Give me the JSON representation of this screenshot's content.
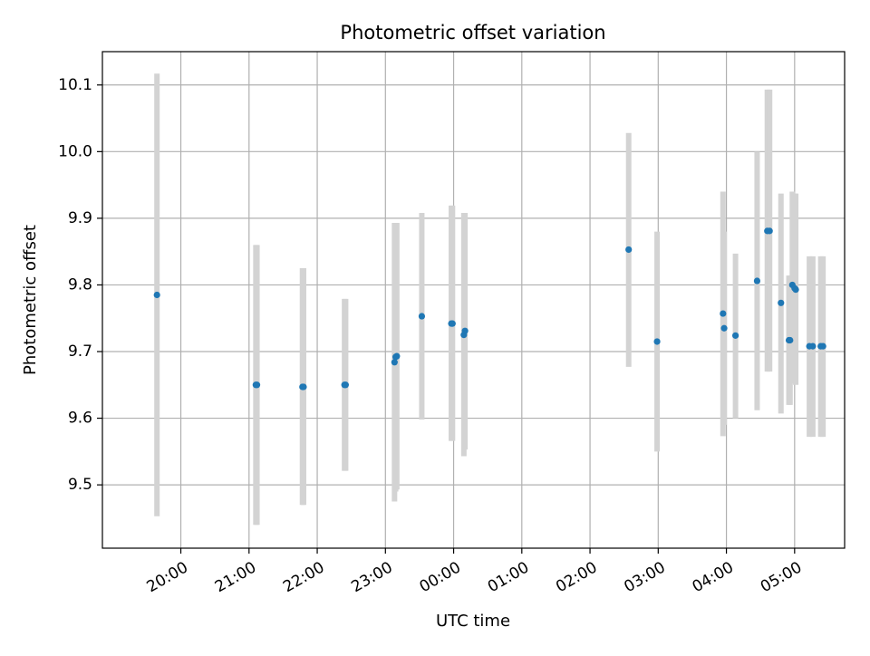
{
  "chart_data": {
    "type": "scatter",
    "title": "Photometric offset variation",
    "xlabel": "UTC time",
    "ylabel": "Photometric offset",
    "grid": true,
    "xlim_minutes_from_19_00": [
      -9,
      644
    ],
    "ylim": [
      9.405,
      10.15
    ],
    "x_ticks": [
      "20:00",
      "21:00",
      "22:00",
      "23:00",
      "00:00",
      "01:00",
      "02:00",
      "03:00",
      "04:00",
      "05:00"
    ],
    "y_ticks": [
      "9.5",
      "9.6",
      "9.7",
      "9.8",
      "9.9",
      "10.0",
      "10.1"
    ],
    "y_tick_values": [
      9.5,
      9.6,
      9.7,
      9.8,
      9.9,
      10.0,
      10.1
    ],
    "colors": {
      "marker": "#1f77b4",
      "errorbar": "#d3d3d3",
      "grid": "#b0b0b0"
    },
    "points": [
      {
        "t": "19:39",
        "y": 9.785,
        "ylo": 9.453,
        "yhi": 10.117
      },
      {
        "t": "21:06",
        "y": 9.65,
        "ylo": 9.44,
        "yhi": 9.86
      },
      {
        "t": "21:07",
        "y": 9.65,
        "ylo": 9.44,
        "yhi": 9.86
      },
      {
        "t": "21:47",
        "y": 9.647,
        "ylo": 9.47,
        "yhi": 9.825
      },
      {
        "t": "21:48",
        "y": 9.647,
        "ylo": 9.47,
        "yhi": 9.825
      },
      {
        "t": "22:24",
        "y": 9.65,
        "ylo": 9.521,
        "yhi": 9.779
      },
      {
        "t": "22:25",
        "y": 9.65,
        "ylo": 9.521,
        "yhi": 9.779
      },
      {
        "t": "23:08",
        "y": 9.684,
        "ylo": 9.475,
        "yhi": 9.893
      },
      {
        "t": "23:09",
        "y": 9.692,
        "ylo": 9.49,
        "yhi": 9.893
      },
      {
        "t": "23:10",
        "y": 9.693,
        "ylo": 9.493,
        "yhi": 9.893
      },
      {
        "t": "23:32",
        "y": 9.753,
        "ylo": 9.598,
        "yhi": 9.908
      },
      {
        "t": "23:58",
        "y": 9.742,
        "ylo": 9.566,
        "yhi": 9.919
      },
      {
        "t": "23:59",
        "y": 9.742,
        "ylo": 9.566,
        "yhi": 9.919
      },
      {
        "t": "00:09",
        "y": 9.725,
        "ylo": 9.543,
        "yhi": 9.908
      },
      {
        "t": "00:10",
        "y": 9.731,
        "ylo": 9.553,
        "yhi": 9.908
      },
      {
        "t": "02:34",
        "y": 9.853,
        "ylo": 9.677,
        "yhi": 10.028
      },
      {
        "t": "02:59",
        "y": 9.715,
        "ylo": 9.55,
        "yhi": 9.88
      },
      {
        "t": "03:57",
        "y": 9.757,
        "ylo": 9.573,
        "yhi": 9.94
      },
      {
        "t": "03:58",
        "y": 9.735,
        "ylo": 9.59,
        "yhi": 9.88
      },
      {
        "t": "04:08",
        "y": 9.724,
        "ylo": 9.6,
        "yhi": 9.847
      },
      {
        "t": "04:27",
        "y": 9.806,
        "ylo": 9.612,
        "yhi": 10.0
      },
      {
        "t": "04:36",
        "y": 9.881,
        "ylo": 9.67,
        "yhi": 10.093
      },
      {
        "t": "04:38",
        "y": 9.881,
        "ylo": 9.67,
        "yhi": 10.093
      },
      {
        "t": "04:48",
        "y": 9.773,
        "ylo": 9.607,
        "yhi": 9.937
      },
      {
        "t": "04:55",
        "y": 9.717,
        "ylo": 9.62,
        "yhi": 9.814
      },
      {
        "t": "04:56",
        "y": 9.717,
        "ylo": 9.62,
        "yhi": 9.814
      },
      {
        "t": "04:58",
        "y": 9.8,
        "ylo": 9.66,
        "yhi": 9.94
      },
      {
        "t": "05:00",
        "y": 9.795,
        "ylo": 9.652,
        "yhi": 9.937
      },
      {
        "t": "05:01",
        "y": 9.793,
        "ylo": 9.65,
        "yhi": 9.937
      },
      {
        "t": "05:13",
        "y": 9.708,
        "ylo": 9.572,
        "yhi": 9.843
      },
      {
        "t": "05:16",
        "y": 9.708,
        "ylo": 9.572,
        "yhi": 9.843
      },
      {
        "t": "05:23",
        "y": 9.708,
        "ylo": 9.572,
        "yhi": 9.843
      },
      {
        "t": "05:25",
        "y": 9.708,
        "ylo": 9.572,
        "yhi": 9.843
      }
    ]
  }
}
